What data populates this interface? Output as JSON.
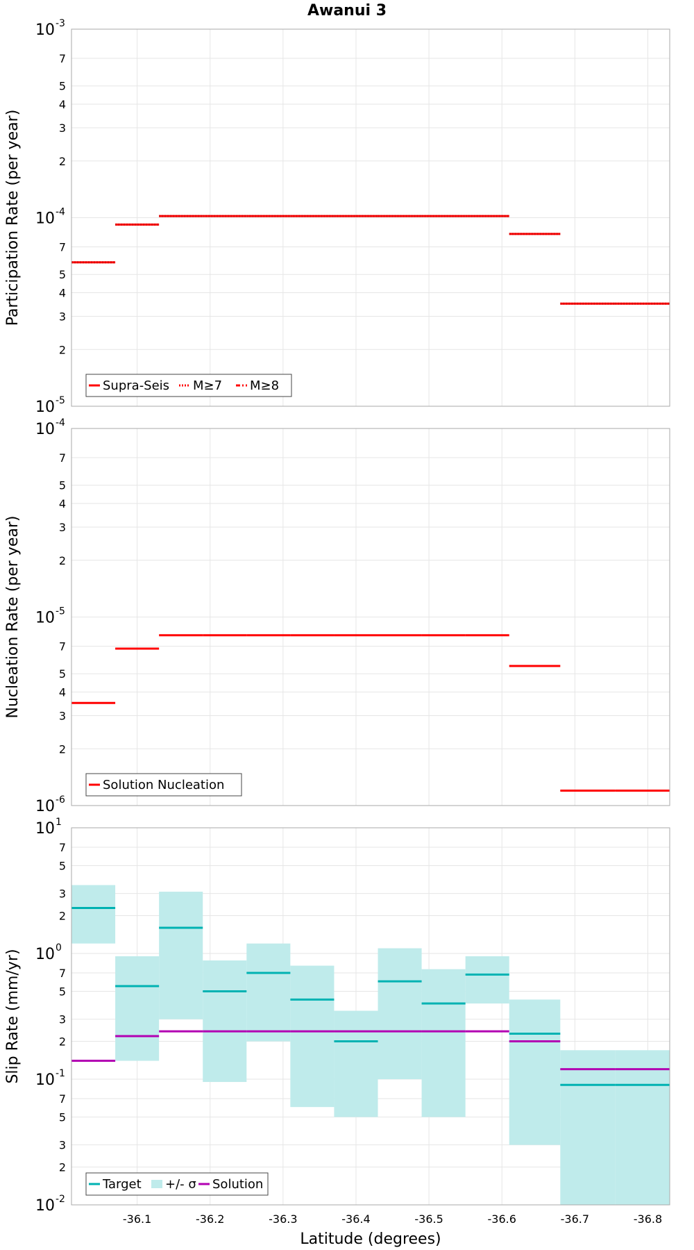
{
  "title": "Awanui 3",
  "xlabel": "Latitude (degrees)",
  "colors": {
    "red": "#ff0000",
    "teal": "#00b2b2",
    "band": "#bfebeb",
    "purple": "#b200b2",
    "grid": "#e6e6e6",
    "frame": "#aaaaaa"
  },
  "chart_data": [
    {
      "type": "line",
      "id": "participation",
      "ylabel": "Participation Rate (per year)",
      "yscale": "log",
      "ylim": [
        1e-05,
        0.001
      ],
      "xlim": [
        -36.01,
        -36.83
      ],
      "xticks": [
        -36.1,
        -36.2,
        -36.3,
        -36.4,
        -36.5,
        -36.6,
        -36.7,
        -36.8
      ],
      "xtick_labels": [
        "-36.1",
        "-36.2",
        "-36.3",
        "-36.4",
        "-36.5",
        "-36.6",
        "-36.7",
        "-36.8"
      ],
      "y_major_ticks": [
        {
          "value": 1e-05,
          "base": "10",
          "exp": "-5"
        },
        {
          "value": 0.0001,
          "base": "10",
          "exp": "-4"
        },
        {
          "value": 0.001,
          "base": "10",
          "exp": "-3"
        }
      ],
      "y_minor_ticks": [
        {
          "value": 2e-05,
          "label": "2"
        },
        {
          "value": 3e-05,
          "label": "3"
        },
        {
          "value": 4e-05,
          "label": "4"
        },
        {
          "value": 5e-05,
          "label": "5"
        },
        {
          "value": 7e-05,
          "label": "7"
        },
        {
          "value": 0.0002,
          "label": "2"
        },
        {
          "value": 0.0003,
          "label": "3"
        },
        {
          "value": 0.0004,
          "label": "4"
        },
        {
          "value": 0.0005,
          "label": "5"
        },
        {
          "value": 0.0007,
          "label": "7"
        }
      ],
      "segments": [
        {
          "x0": -36.01,
          "x1": -36.07,
          "y": 5.8e-05
        },
        {
          "x0": -36.07,
          "x1": -36.13,
          "y": 9.2e-05
        },
        {
          "x0": -36.13,
          "x1": -36.19,
          "y": 0.000102
        },
        {
          "x0": -36.19,
          "x1": -36.25,
          "y": 0.000102
        },
        {
          "x0": -36.25,
          "x1": -36.31,
          "y": 0.000102
        },
        {
          "x0": -36.31,
          "x1": -36.37,
          "y": 0.000102
        },
        {
          "x0": -36.37,
          "x1": -36.43,
          "y": 0.000102
        },
        {
          "x0": -36.43,
          "x1": -36.49,
          "y": 0.000102
        },
        {
          "x0": -36.49,
          "x1": -36.55,
          "y": 0.000102
        },
        {
          "x0": -36.55,
          "x1": -36.61,
          "y": 0.000102
        },
        {
          "x0": -36.61,
          "x1": -36.68,
          "y": 8.2e-05
        },
        {
          "x0": -36.68,
          "x1": -36.755,
          "y": 3.5e-05
        },
        {
          "x0": -36.755,
          "x1": -36.83,
          "y": 3.5e-05
        }
      ],
      "legend": [
        {
          "label": "Supra-Seis",
          "style": "solid"
        },
        {
          "label": "M≥7",
          "style": "dotted"
        },
        {
          "label": "M≥8",
          "style": "dashdot"
        }
      ]
    },
    {
      "type": "line",
      "id": "nucleation",
      "ylabel": "Nucleation Rate (per year)",
      "yscale": "log",
      "ylim": [
        1e-06,
        0.0001
      ],
      "xlim": [
        -36.01,
        -36.83
      ],
      "y_major_ticks": [
        {
          "value": 1e-06,
          "base": "10",
          "exp": "-6"
        },
        {
          "value": 1e-05,
          "base": "10",
          "exp": "-5"
        },
        {
          "value": 0.0001,
          "base": "10",
          "exp": "-4"
        }
      ],
      "y_minor_ticks": [
        {
          "value": 2e-06,
          "label": "2"
        },
        {
          "value": 3e-06,
          "label": "3"
        },
        {
          "value": 4e-06,
          "label": "4"
        },
        {
          "value": 5e-06,
          "label": "5"
        },
        {
          "value": 7e-06,
          "label": "7"
        },
        {
          "value": 2e-05,
          "label": "2"
        },
        {
          "value": 3e-05,
          "label": "3"
        },
        {
          "value": 4e-05,
          "label": "4"
        },
        {
          "value": 5e-05,
          "label": "5"
        },
        {
          "value": 7e-05,
          "label": "7"
        }
      ],
      "segments": [
        {
          "x0": -36.01,
          "x1": -36.07,
          "y": 3.5e-06
        },
        {
          "x0": -36.07,
          "x1": -36.13,
          "y": 6.8e-06
        },
        {
          "x0": -36.13,
          "x1": -36.19,
          "y": 8e-06
        },
        {
          "x0": -36.19,
          "x1": -36.25,
          "y": 8e-06
        },
        {
          "x0": -36.25,
          "x1": -36.31,
          "y": 8e-06
        },
        {
          "x0": -36.31,
          "x1": -36.37,
          "y": 8e-06
        },
        {
          "x0": -36.37,
          "x1": -36.43,
          "y": 8e-06
        },
        {
          "x0": -36.43,
          "x1": -36.49,
          "y": 8e-06
        },
        {
          "x0": -36.49,
          "x1": -36.55,
          "y": 8e-06
        },
        {
          "x0": -36.55,
          "x1": -36.61,
          "y": 8e-06
        },
        {
          "x0": -36.61,
          "x1": -36.68,
          "y": 5.5e-06
        },
        {
          "x0": -36.68,
          "x1": -36.755,
          "y": 1.2e-06
        },
        {
          "x0": -36.755,
          "x1": -36.83,
          "y": 1.2e-06
        }
      ],
      "legend": [
        {
          "label": "Solution Nucleation",
          "style": "solid"
        }
      ]
    },
    {
      "type": "line",
      "id": "slip",
      "ylabel": "Slip Rate (mm/yr)",
      "yscale": "log",
      "ylim": [
        0.01,
        10
      ],
      "xlim": [
        -36.01,
        -36.83
      ],
      "y_major_ticks": [
        {
          "value": 0.01,
          "base": "10",
          "exp": "-2"
        },
        {
          "value": 0.1,
          "base": "10",
          "exp": "-1"
        },
        {
          "value": 1,
          "base": "10",
          "exp": "0"
        },
        {
          "value": 10,
          "base": "10",
          "exp": "1"
        }
      ],
      "y_minor_ticks": [
        {
          "value": 0.02,
          "label": "2"
        },
        {
          "value": 0.03,
          "label": "3"
        },
        {
          "value": 0.05,
          "label": "5"
        },
        {
          "value": 0.07,
          "label": "7"
        },
        {
          "value": 0.2,
          "label": "2"
        },
        {
          "value": 0.3,
          "label": "3"
        },
        {
          "value": 0.5,
          "label": "5"
        },
        {
          "value": 0.7,
          "label": "7"
        },
        {
          "value": 2,
          "label": "2"
        },
        {
          "value": 3,
          "label": "3"
        },
        {
          "value": 5,
          "label": "5"
        },
        {
          "value": 7,
          "label": "7"
        }
      ],
      "sections": [
        {
          "x0": -36.01,
          "x1": -36.07,
          "target": 2.3,
          "lo": 1.2,
          "hi": 3.5,
          "solution": 0.14
        },
        {
          "x0": -36.07,
          "x1": -36.13,
          "target": 0.55,
          "lo": 0.14,
          "hi": 0.95,
          "solution": 0.22
        },
        {
          "x0": -36.13,
          "x1": -36.19,
          "target": 1.6,
          "lo": 0.3,
          "hi": 3.1,
          "solution": 0.24
        },
        {
          "x0": -36.19,
          "x1": -36.25,
          "target": 0.5,
          "lo": 0.095,
          "hi": 0.88,
          "solution": 0.24
        },
        {
          "x0": -36.25,
          "x1": -36.31,
          "target": 0.7,
          "lo": 0.2,
          "hi": 1.2,
          "solution": 0.24
        },
        {
          "x0": -36.31,
          "x1": -36.37,
          "target": 0.43,
          "lo": 0.06,
          "hi": 0.8,
          "solution": 0.24
        },
        {
          "x0": -36.37,
          "x1": -36.43,
          "target": 0.2,
          "lo": 0.05,
          "hi": 0.35,
          "solution": 0.24
        },
        {
          "x0": -36.43,
          "x1": -36.49,
          "target": 0.6,
          "lo": 0.1,
          "hi": 1.1,
          "solution": 0.24
        },
        {
          "x0": -36.49,
          "x1": -36.55,
          "target": 0.4,
          "lo": 0.05,
          "hi": 0.75,
          "solution": 0.24
        },
        {
          "x0": -36.55,
          "x1": -36.61,
          "target": 0.68,
          "lo": 0.4,
          "hi": 0.95,
          "solution": 0.24
        },
        {
          "x0": -36.61,
          "x1": -36.68,
          "target": 0.23,
          "lo": 0.03,
          "hi": 0.43,
          "solution": 0.2
        },
        {
          "x0": -36.68,
          "x1": -36.755,
          "target": 0.09,
          "lo": 0.01,
          "hi": 0.17,
          "solution": 0.12
        },
        {
          "x0": -36.755,
          "x1": -36.83,
          "target": 0.09,
          "lo": 0.01,
          "hi": 0.17,
          "solution": 0.12
        }
      ],
      "legend": [
        {
          "label": "Target",
          "kind": "line"
        },
        {
          "label": "+/- σ",
          "kind": "band"
        },
        {
          "label": "Solution",
          "kind": "line2"
        }
      ]
    }
  ]
}
